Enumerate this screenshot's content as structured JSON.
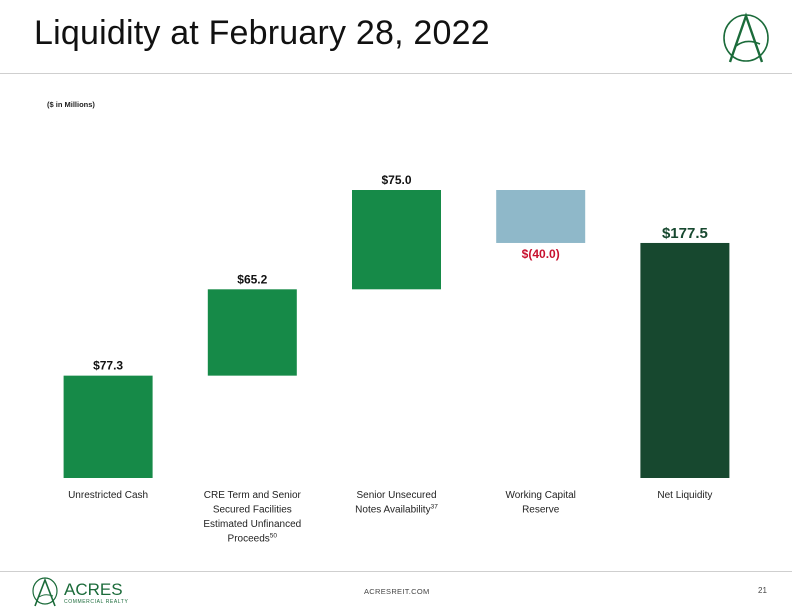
{
  "header": {
    "title": "Liquidity at February 28, 2022"
  },
  "units_note": "($ in Millions)",
  "brand": {
    "name": "ACRES",
    "tagline": "COMMERCIAL REALTY"
  },
  "footer": {
    "url": "ACRESREIT.COM",
    "page": "21"
  },
  "colors": {
    "increase": "#168a48",
    "decrease": "#8fb8c9",
    "total": "#17482f",
    "negative_label": "#c8102e",
    "logo_green": "#1b6b3a"
  },
  "chart_data": {
    "type": "bar",
    "subtype": "waterfall",
    "title": "Liquidity at February 28, 2022",
    "units": "($ in Millions)",
    "ylim": [
      0,
      177.5
    ],
    "grid": false,
    "legend": "none",
    "categories": [
      {
        "label": [
          "Unrestricted Cash"
        ],
        "sup": ""
      },
      {
        "label": [
          "CRE Term and Senior",
          "Secured Facilities",
          "Estimated Unfinanced",
          "Proceeds"
        ],
        "sup": "50"
      },
      {
        "label": [
          "Senior Unsecured",
          "Notes Availability"
        ],
        "sup": "37"
      },
      {
        "label": [
          "Working Capital",
          "Reserve"
        ],
        "sup": ""
      },
      {
        "label": [
          "Net Liquidity"
        ],
        "sup": ""
      }
    ],
    "bars": [
      {
        "kind": "increase",
        "start": 0,
        "end": 77.3,
        "label": "$77.3"
      },
      {
        "kind": "increase",
        "start": 77.3,
        "end": 142.5,
        "label": "$65.2"
      },
      {
        "kind": "increase",
        "start": 142.5,
        "end": 217.5,
        "label": "$75.0"
      },
      {
        "kind": "decrease",
        "start": 217.5,
        "end": 177.5,
        "label": "$(40.0)"
      },
      {
        "kind": "total",
        "start": 0,
        "end": 177.5,
        "label": "$177.5"
      }
    ]
  }
}
